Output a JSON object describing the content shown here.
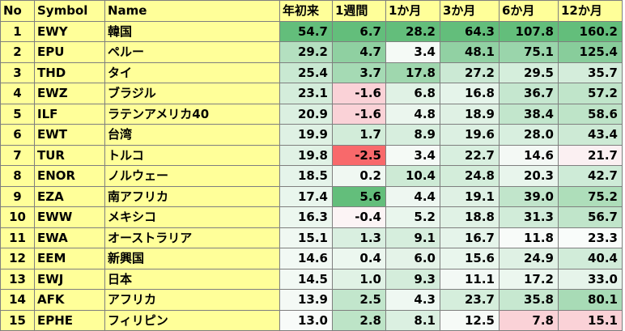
{
  "table": {
    "headers": [
      "No",
      "Symbol",
      "Name",
      "年初来",
      "1週間",
      "1か月",
      "3か月",
      "6か月",
      "12か月"
    ],
    "rows": [
      {
        "no": "1",
        "symbol": "EWY",
        "name": "韓国",
        "values": [
          "54.7",
          "6.7",
          "28.2",
          "64.3",
          "107.8",
          "160.2"
        ],
        "colors": [
          "#63be7b",
          "#63be7b",
          "#63be7b",
          "#63be7b",
          "#63be7b",
          "#63be7b"
        ]
      },
      {
        "no": "2",
        "symbol": "EPU",
        "name": "ペルー",
        "values": [
          "29.2",
          "4.7",
          "3.4",
          "48.1",
          "75.1",
          "125.4"
        ],
        "colors": [
          "#b4e0c0",
          "#8fd0a1",
          "#f5faf6",
          "#91d1a3",
          "#9ad5ab",
          "#88cd9b"
        ]
      },
      {
        "no": "3",
        "symbol": "THD",
        "name": "タイ",
        "values": [
          "25.4",
          "3.7",
          "17.8",
          "27.2",
          "29.5",
          "35.7"
        ],
        "colors": [
          "#c9e9d2",
          "#a5dab4",
          "#9fd7ae",
          "#cbe9d4",
          "#d5eedc",
          "#d4eddb"
        ]
      },
      {
        "no": "4",
        "symbol": "EWZ",
        "name": "ブラジル",
        "values": [
          "23.1",
          "-1.6",
          "6.8",
          "16.8",
          "36.7",
          "57.2"
        ],
        "colors": [
          "#d4eddb",
          "#fad2d7",
          "#e0f2e5",
          "#e5f4ea",
          "#c5e7cf",
          "#c0e5ca"
        ]
      },
      {
        "no": "5",
        "symbol": "ILF",
        "name": "ラテンアメリカ40",
        "values": [
          "20.9",
          "-1.6",
          "4.8",
          "18.9",
          "38.4",
          "58.6"
        ],
        "colors": [
          "#dbf0e1",
          "#fad2d7",
          "#ebf6ee",
          "#dff1e4",
          "#c2e6cc",
          "#bee4c8"
        ]
      },
      {
        "no": "6",
        "symbol": "EWT",
        "name": "台湾",
        "values": [
          "19.9",
          "1.7",
          "8.9",
          "19.6",
          "28.0",
          "43.4"
        ],
        "colors": [
          "#dff1e4",
          "#d2ecd9",
          "#d7eede",
          "#dcf0e2",
          "#d8efdf",
          "#cdead5"
        ]
      },
      {
        "no": "7",
        "symbol": "TUR",
        "name": "トルコ",
        "values": [
          "19.8",
          "-2.5",
          "3.4",
          "22.7",
          "14.6",
          "21.7"
        ],
        "colors": [
          "#e0f2e5",
          "#f8696b",
          "#f5faf6",
          "#d8efdf",
          "#f4f9f5",
          "#fbf0f2"
        ]
      },
      {
        "no": "8",
        "symbol": "ENOR",
        "name": "ノルウェー",
        "values": [
          "18.5",
          "0.2",
          "10.4",
          "24.8",
          "20.3",
          "42.7"
        ],
        "colors": [
          "#e5f4ea",
          "#f0f8f2",
          "#cdead5",
          "#d3edda",
          "#e8f5ec",
          "#ceebd7"
        ]
      },
      {
        "no": "9",
        "symbol": "EZA",
        "name": "南アフリカ",
        "values": [
          "17.4",
          "5.6",
          "4.4",
          "19.1",
          "39.0",
          "75.2"
        ],
        "colors": [
          "#e9f6ed",
          "#63be7b",
          "#eef7f1",
          "#dff1e4",
          "#c1e5cb",
          "#aedeba"
        ]
      },
      {
        "no": "10",
        "symbol": "EWW",
        "name": "メキシコ",
        "values": [
          "16.3",
          "-0.4",
          "5.2",
          "18.8",
          "31.3",
          "56.7"
        ],
        "colors": [
          "#ecf7ef",
          "#fcf4f5",
          "#e9f6ed",
          "#e0f2e5",
          "#d1ecd9",
          "#c0e5ca"
        ]
      },
      {
        "no": "11",
        "symbol": "EWA",
        "name": "オーストラリア",
        "values": [
          "15.1",
          "1.3",
          "9.1",
          "16.7",
          "11.8",
          "23.3"
        ],
        "colors": [
          "#f0f8f2",
          "#d9efe0",
          "#d6eedd",
          "#e5f4ea",
          "#f8fbf9",
          "#f9fcfa"
        ]
      },
      {
        "no": "12",
        "symbol": "EEM",
        "name": "新興国",
        "values": [
          "14.6",
          "0.4",
          "6.0",
          "15.6",
          "24.9",
          "40.4"
        ],
        "colors": [
          "#f2f9f4",
          "#ecf7ef",
          "#e4f3e8",
          "#e9f6ed",
          "#dff1e4",
          "#d1ecd9"
        ]
      },
      {
        "no": "13",
        "symbol": "EWJ",
        "name": "日本",
        "values": [
          "14.5",
          "1.0",
          "9.3",
          "11.1",
          "17.2",
          "33.0"
        ],
        "colors": [
          "#f2f9f4",
          "#e0f2e5",
          "#d4eddb",
          "#f3f9f5",
          "#ecf7ef",
          "#e6f4ea"
        ]
      },
      {
        "no": "14",
        "symbol": "AFK",
        "name": "アフリカ",
        "values": [
          "13.9",
          "2.5",
          "4.3",
          "23.7",
          "35.8",
          "80.1"
        ],
        "colors": [
          "#f4f9f5",
          "#c2e6cc",
          "#eff8f2",
          "#d5eedc",
          "#c7e8d0",
          "#a8dbb6"
        ]
      },
      {
        "no": "15",
        "symbol": "EPHE",
        "name": "フィリピン",
        "values": [
          "13.0",
          "2.8",
          "8.1",
          "12.5",
          "7.8",
          "15.1"
        ],
        "colors": [
          "#f8fbf9",
          "#bde4c7",
          "#dbf0e1",
          "#f6faf7",
          "#fad2d7",
          "#fad2d7"
        ]
      }
    ]
  }
}
